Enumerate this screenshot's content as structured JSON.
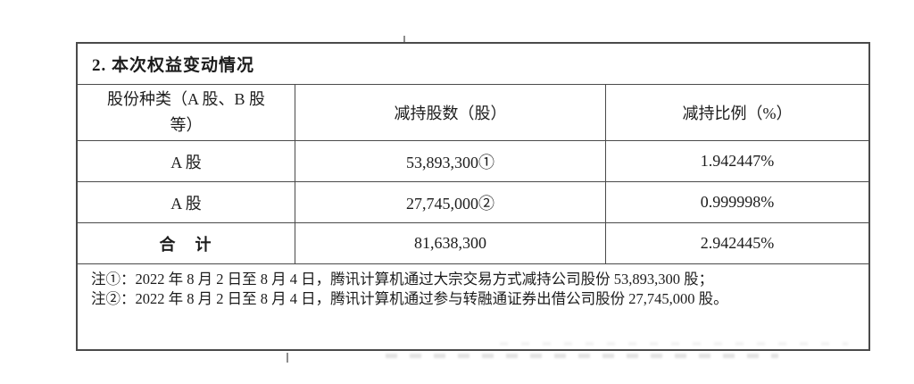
{
  "document": {
    "section_title": "2. 本次权益变动情况",
    "table": {
      "headers": {
        "share_type": "股份种类（A 股、B 股等）",
        "shares_reduced": "减持股数（股）",
        "reduction_ratio": "减持比例（%）"
      },
      "rows": [
        {
          "share_type": "A 股",
          "shares_reduced": "53,893,300①",
          "reduction_ratio": "1.942447%"
        },
        {
          "share_type": "A 股",
          "shares_reduced": "27,745,000②",
          "reduction_ratio": "0.999998%"
        },
        {
          "share_type": "合　计",
          "shares_reduced": "81,638,300",
          "reduction_ratio": "2.942445%"
        }
      ],
      "notes": [
        "注①：2022 年 8 月 2 日至 8 月 4 日，腾讯计算机通过大宗交易方式减持公司股份 53,893,300 股；",
        "注②：2022 年 8 月 2 日至 8 月 4 日，腾讯计算机通过参与转融通证券出借公司股份 27,745,000 股。"
      ]
    }
  },
  "colors": {
    "background": "#ffffff",
    "border": "#4a4a4a",
    "text": "#1c1c1c"
  }
}
